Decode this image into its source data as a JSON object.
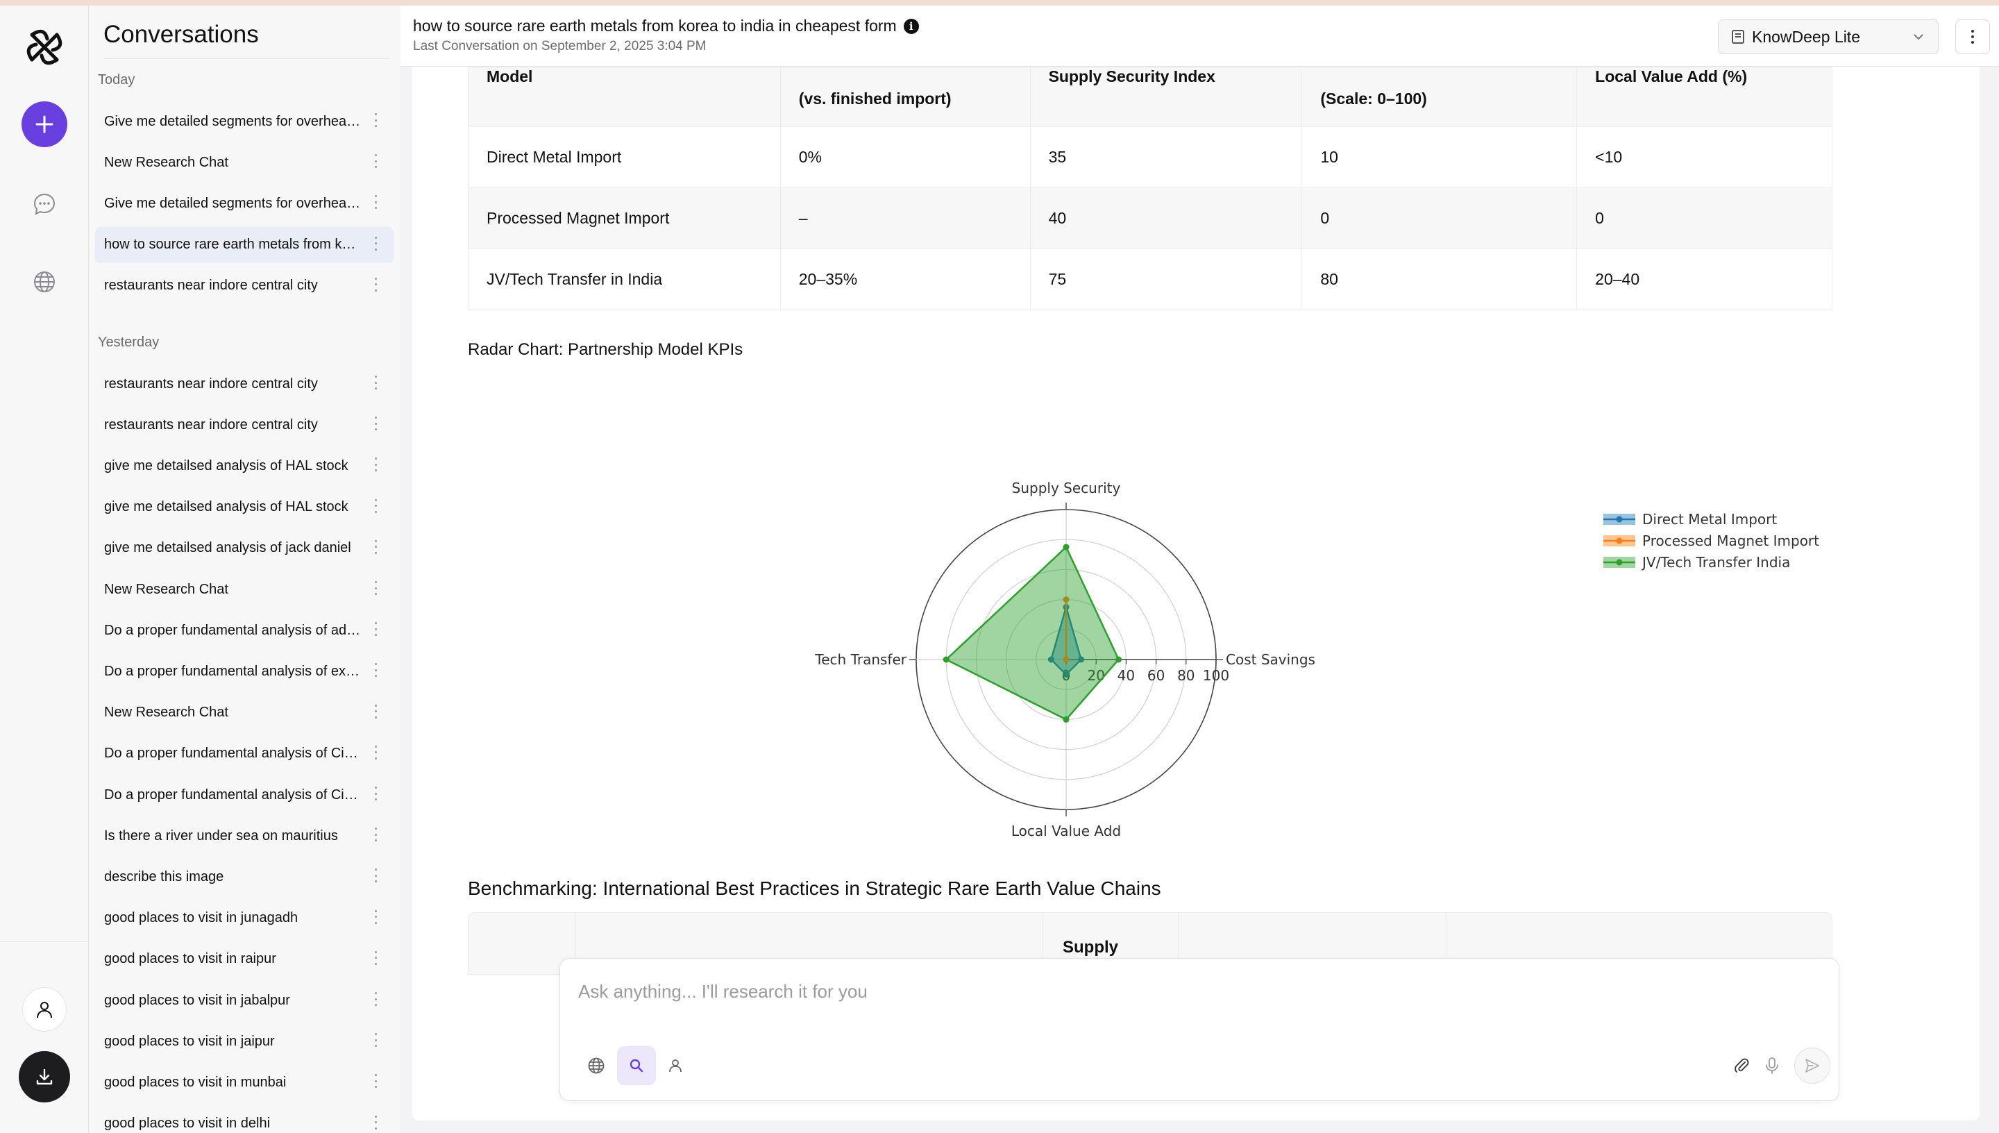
{
  "sidebar": {
    "title": "Conversations",
    "groups": {
      "today": "Today",
      "yesterday": "Yesterday"
    },
    "today_items": [
      {
        "label": "Give me detailed segments for overheads of a company"
      },
      {
        "label": "New Research Chat"
      },
      {
        "label": "Give me detailed segments for overheads of a company"
      },
      {
        "label": "how to source rare earth metals from korea to india in cheapest form"
      },
      {
        "label": "restaurants near indore central city"
      }
    ],
    "yesterday_items": [
      {
        "label": "restaurants near indore central city"
      },
      {
        "label": "restaurants near indore central city"
      },
      {
        "label": "give me detailsed analysis of HAL stock"
      },
      {
        "label": "give me detailsed analysis of HAL stock"
      },
      {
        "label": "give me detailsed analysis of jack daniel"
      },
      {
        "label": "New Research Chat"
      },
      {
        "label": "Do a proper fundamental analysis of adani power"
      },
      {
        "label": "Do a proper fundamental analysis of exide industries"
      },
      {
        "label": "New Research Chat"
      },
      {
        "label": "Do a proper fundamental analysis of Cipla limited"
      },
      {
        "label": "Do a proper fundamental analysis of Cipla limited"
      },
      {
        "label": "Is there a river under sea on mauritius"
      },
      {
        "label": "describe this image"
      },
      {
        "label": "good places to visit in junagadh"
      },
      {
        "label": "good places to visit in raipur"
      },
      {
        "label": "good places to visit in jabalpur"
      },
      {
        "label": "good places to visit in jaipur"
      },
      {
        "label": "good places to visit in munbai"
      },
      {
        "label": "good places to visit in delhi"
      }
    ]
  },
  "header": {
    "title": "how to source rare earth metals from korea to india in cheapest form",
    "subtitle": "Last Conversation on September 2, 2025 3:04 PM",
    "model": "KnowDeep Lite"
  },
  "kpi_table": {
    "headers": [
      "Model",
      "(vs. finished import)",
      "Supply Security Index",
      "(Scale: 0–100)",
      "Local Value Add (%)"
    ],
    "rows": [
      [
        "Direct Metal Import",
        "0%",
        "35",
        "10",
        "<10"
      ],
      [
        "Processed Magnet Import",
        "–",
        "40",
        "0",
        "0"
      ],
      [
        "JV/Tech Transfer in India",
        "20–35%",
        "75",
        "80",
        "20–40"
      ]
    ]
  },
  "chart_data": {
    "type": "radar",
    "title": "Radar Chart: Partnership Model KPIs",
    "axes": [
      "Supply Security",
      "Cost Savings",
      "Local Value Add",
      "Tech Transfer"
    ],
    "radial_ticks": [
      0,
      20,
      40,
      60,
      80,
      100
    ],
    "range": [
      0,
      100
    ],
    "legend_position": "right",
    "series": [
      {
        "name": "Direct Metal Import",
        "color": "#1f77b4",
        "values": [
          35,
          10,
          10,
          10
        ]
      },
      {
        "name": "Processed Magnet Import",
        "color": "#ff7f0e",
        "values": [
          40,
          0,
          0,
          0
        ]
      },
      {
        "name": "JV/Tech Transfer India",
        "color": "#2ca02c",
        "values": [
          75,
          35,
          40,
          80
        ]
      }
    ]
  },
  "benchmark": {
    "title": "Benchmarking: International Best Practices in Strategic Rare Earth Value Chains",
    "visible_header": "Supply"
  },
  "composer": {
    "placeholder": "Ask anything... I'll research it for you"
  },
  "colors": {
    "accent": "#6a3fe0",
    "active_conv": "#e9edf7"
  }
}
